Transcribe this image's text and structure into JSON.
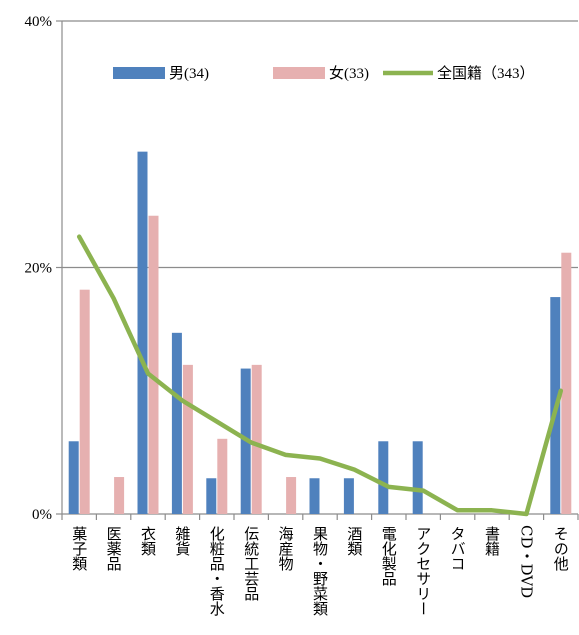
{
  "chart_data": {
    "type": "bar",
    "categories": [
      "菓子類",
      "医薬品",
      "衣類",
      "雑貨",
      "化粧品・香水",
      "伝統工芸品",
      "海産物",
      "果物・野菜類",
      "酒類",
      "電化製品",
      "アクセサリー",
      "タバコ",
      "書籍",
      "CD・DVD",
      "その他"
    ],
    "series": [
      {
        "name": "男(34)",
        "kind": "bar",
        "color": "#4F81BD",
        "values": [
          5.9,
          0,
          29.4,
          14.7,
          2.9,
          11.8,
          0,
          2.9,
          2.9,
          5.9,
          5.9,
          0,
          0,
          0,
          17.6
        ]
      },
      {
        "name": "女(33)",
        "kind": "bar",
        "color": "#E6B0B0",
        "values": [
          18.2,
          3.0,
          24.2,
          12.1,
          6.1,
          12.1,
          3.0,
          0,
          0,
          0,
          0,
          0,
          0,
          0,
          21.2
        ]
      },
      {
        "name": "全国籍（343）",
        "kind": "line",
        "color": "#8CB350",
        "values": [
          22.5,
          17.5,
          11.4,
          9.2,
          7.5,
          5.8,
          4.8,
          4.5,
          3.6,
          2.2,
          1.9,
          0.3,
          0.3,
          0.0,
          10.0
        ]
      }
    ],
    "y_ticks": [
      "0%",
      "20%",
      "40%"
    ],
    "ylim": [
      0,
      40
    ],
    "grid": true,
    "legend_position": "top-right"
  }
}
